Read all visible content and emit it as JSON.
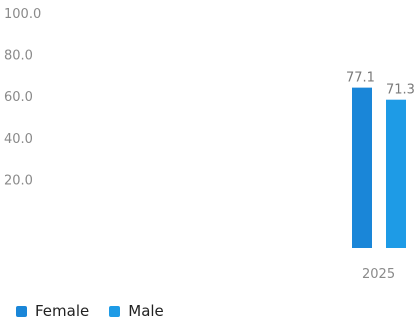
{
  "chart_data": {
    "type": "bar",
    "categories": [
      "2025"
    ],
    "series": [
      {
        "name": "Female",
        "values": [
          77.1
        ],
        "label": "77.1",
        "color": "#1a86d8"
      },
      {
        "name": "Male",
        "values": [
          71.3
        ],
        "label": "71.3",
        "color": "#1e9be6"
      }
    ],
    "yticks": [
      "100.0",
      "80.0",
      "60.0",
      "40.0",
      "20.0"
    ],
    "ytick_values": [
      100,
      80,
      60,
      40,
      20
    ],
    "ylim": [
      0,
      100
    ],
    "grid": false,
    "legend_position": "bottom-left"
  }
}
